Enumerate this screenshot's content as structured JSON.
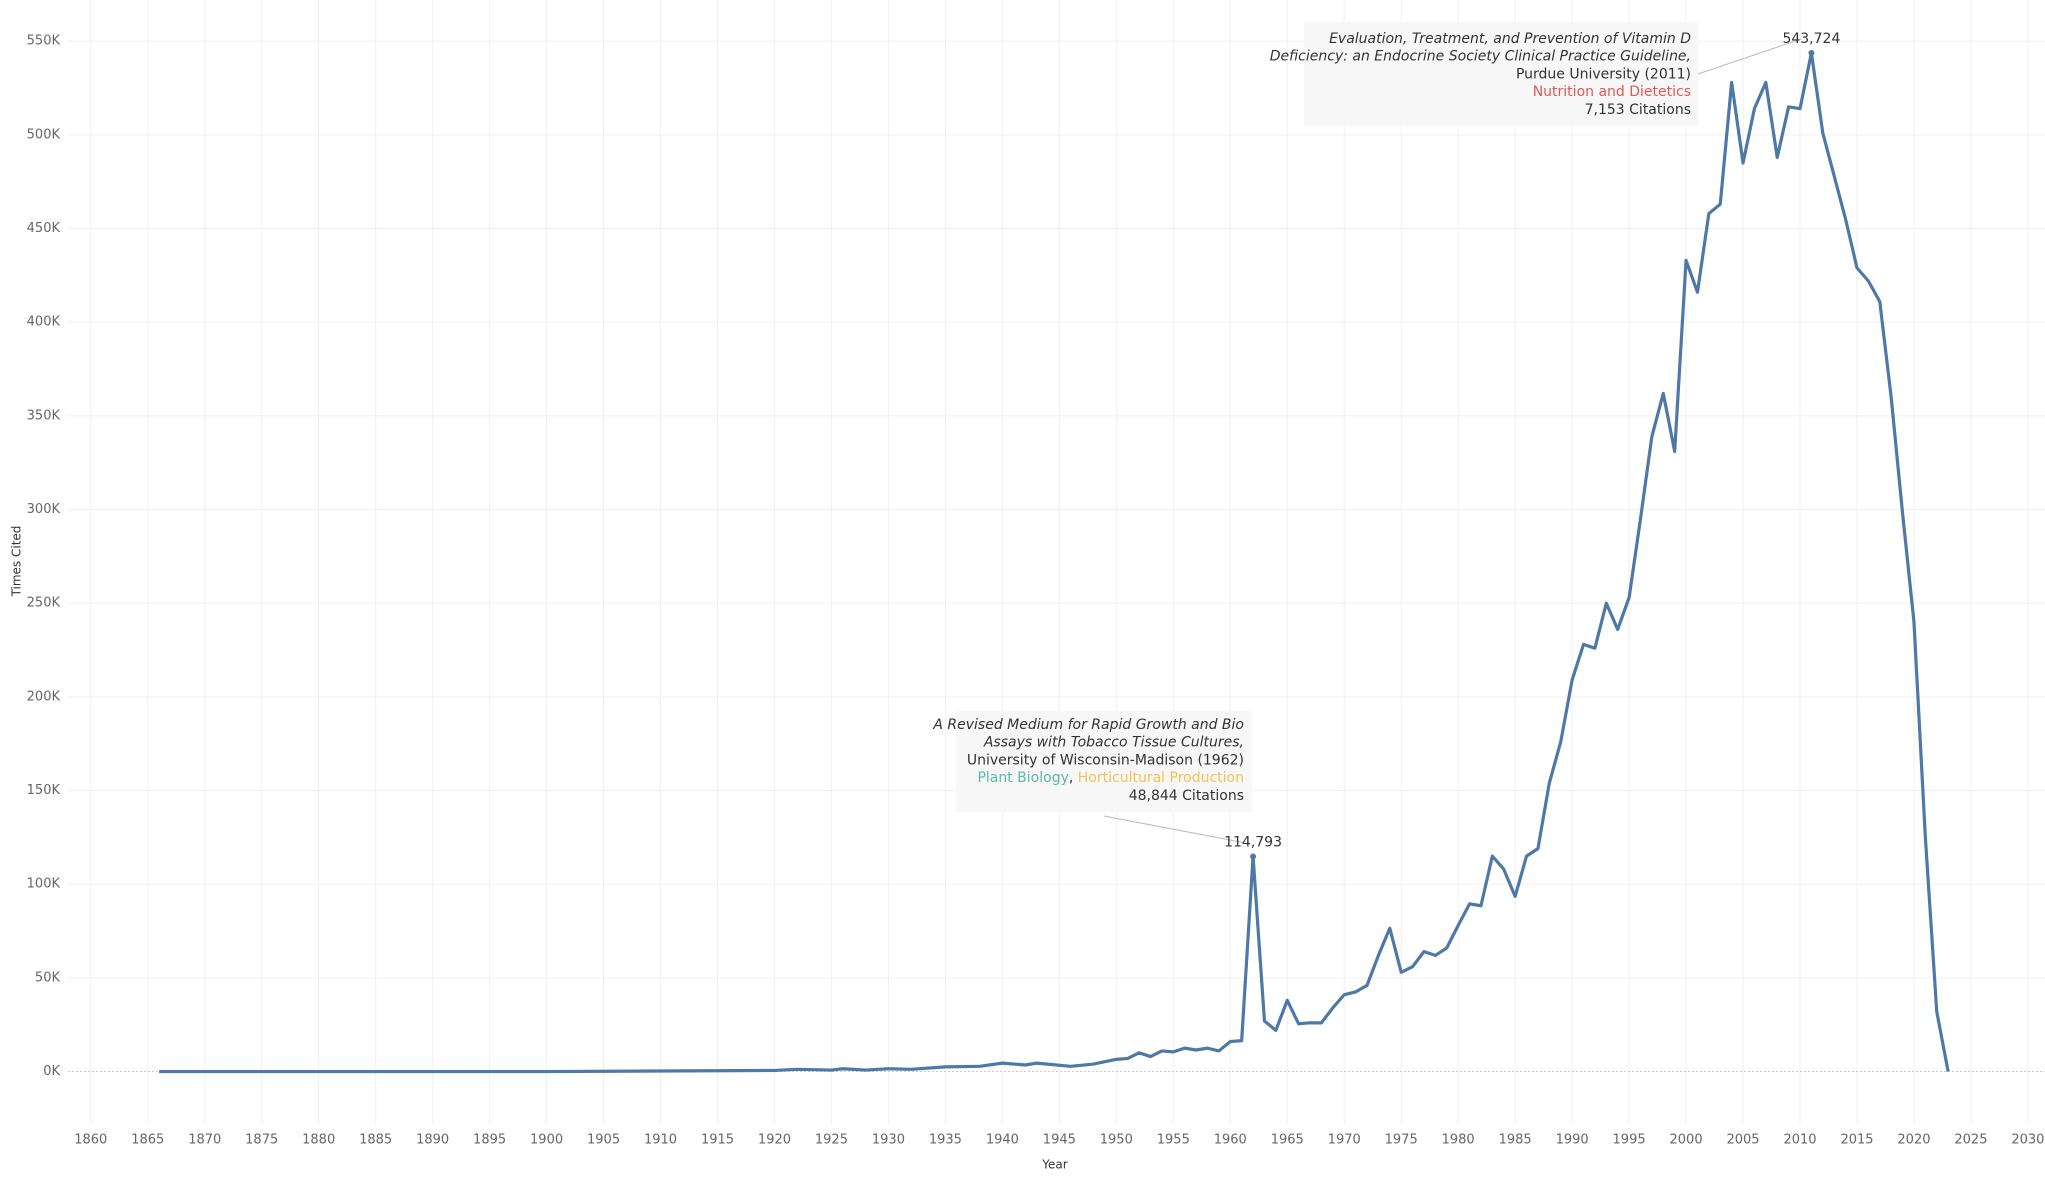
{
  "chart_data": {
    "type": "line",
    "x_label": "Year",
    "y_label": "Times Cited",
    "xlim": [
      1858,
      2031.5
    ],
    "ylim": [
      -28000,
      572000
    ],
    "xticks": [
      1860,
      1865,
      1870,
      1875,
      1880,
      1885,
      1890,
      1895,
      1900,
      1905,
      1910,
      1915,
      1920,
      1925,
      1930,
      1935,
      1940,
      1945,
      1950,
      1955,
      1960,
      1965,
      1970,
      1975,
      1980,
      1985,
      1990,
      1995,
      2000,
      2005,
      2010,
      2015,
      2020,
      2025,
      2030
    ],
    "yticks": [
      {
        "value": 0,
        "label": "0K"
      },
      {
        "value": 50000,
        "label": "50K"
      },
      {
        "value": 100000,
        "label": "100K"
      },
      {
        "value": 150000,
        "label": "150K"
      },
      {
        "value": 200000,
        "label": "200K"
      },
      {
        "value": 250000,
        "label": "250K"
      },
      {
        "value": 300000,
        "label": "300K"
      },
      {
        "value": 350000,
        "label": "350K"
      },
      {
        "value": 400000,
        "label": "400K"
      },
      {
        "value": 450000,
        "label": "450K"
      },
      {
        "value": 500000,
        "label": "500K"
      },
      {
        "value": 550000,
        "label": "550K"
      }
    ],
    "grid": true,
    "x": [
      1866,
      1880,
      1900,
      1910,
      1920,
      1922,
      1925,
      1926,
      1928,
      1930,
      1932,
      1935,
      1938,
      1940,
      1942,
      1943,
      1946,
      1948,
      1950,
      1951,
      1952,
      1953,
      1954,
      1955,
      1956,
      1957,
      1958,
      1959,
      1960,
      1961,
      1962,
      1963,
      1964,
      1965,
      1966,
      1967,
      1968,
      1969,
      1970,
      1971,
      1972,
      1973,
      1974,
      1975,
      1976,
      1977,
      1978,
      1979,
      1980,
      1981,
      1982,
      1983,
      1984,
      1985,
      1986,
      1987,
      1988,
      1989,
      1990,
      1991,
      1992,
      1993,
      1994,
      1995,
      1996,
      1997,
      1998,
      1999,
      2000,
      2001,
      2002,
      2003,
      2004,
      2005,
      2006,
      2007,
      2008,
      2009,
      2010,
      2011,
      2012,
      2013,
      2014,
      2015,
      2016,
      2017,
      2018,
      2019,
      2020,
      2021,
      2022,
      2023
    ],
    "series": [
      {
        "name": "Times Cited",
        "color": "#4e79a7",
        "values": [
          0,
          0,
          0,
          300,
          600,
          1200,
          800,
          1500,
          800,
          1500,
          1200,
          2500,
          2800,
          4500,
          3500,
          4500,
          2800,
          4000,
          6500,
          7000,
          10000,
          8000,
          11000,
          10500,
          12500,
          11500,
          12500,
          11000,
          16000,
          16500,
          114793,
          27000,
          22000,
          38000,
          25500,
          26000,
          26000,
          34000,
          41000,
          42500,
          46000,
          62000,
          76500,
          53000,
          56000,
          64000,
          62000,
          66000,
          78000,
          89500,
          88500,
          115000,
          108000,
          93500,
          115000,
          119000,
          154000,
          176000,
          209000,
          228000,
          226000,
          250000,
          236000,
          253000,
          295000,
          339000,
          362000,
          331000,
          433000,
          416000,
          458000,
          463000,
          528000,
          485000,
          514000,
          528000,
          488000,
          515000,
          514000,
          543724,
          501000,
          478000,
          455000,
          429000,
          422000,
          411000,
          360000,
          298000,
          240000,
          125000,
          32000,
          0
        ]
      }
    ],
    "annotations": [
      {
        "x": 1962,
        "y": 114793,
        "label": "114,793",
        "title_lines": [
          "A Revised Medium for Rapid Growth and Bio",
          "Assays with Tobacco Tissue Cultures,"
        ],
        "institution": "University of Wisconsin-Madison (1962)",
        "fields": [
          {
            "text": "Plant Biology",
            "color": "#5bb8a5"
          },
          {
            "text": ", ",
            "color": "#333333"
          },
          {
            "text": "Horticultural Production",
            "color": "#f1c25b"
          }
        ],
        "citations": "48,844 Citations"
      },
      {
        "x": 2011,
        "y": 543724,
        "label": "543,724",
        "title_lines": [
          "Evaluation, Treatment, and Prevention of Vitamin D",
          "Deficiency: an Endocrine Society Clinical Practice Guideline,"
        ],
        "institution": "Purdue University (2011)",
        "fields": [
          {
            "text": "Nutrition and Dietetics",
            "color": "#e15759"
          }
        ],
        "citations": "7,153 Citations"
      }
    ]
  }
}
